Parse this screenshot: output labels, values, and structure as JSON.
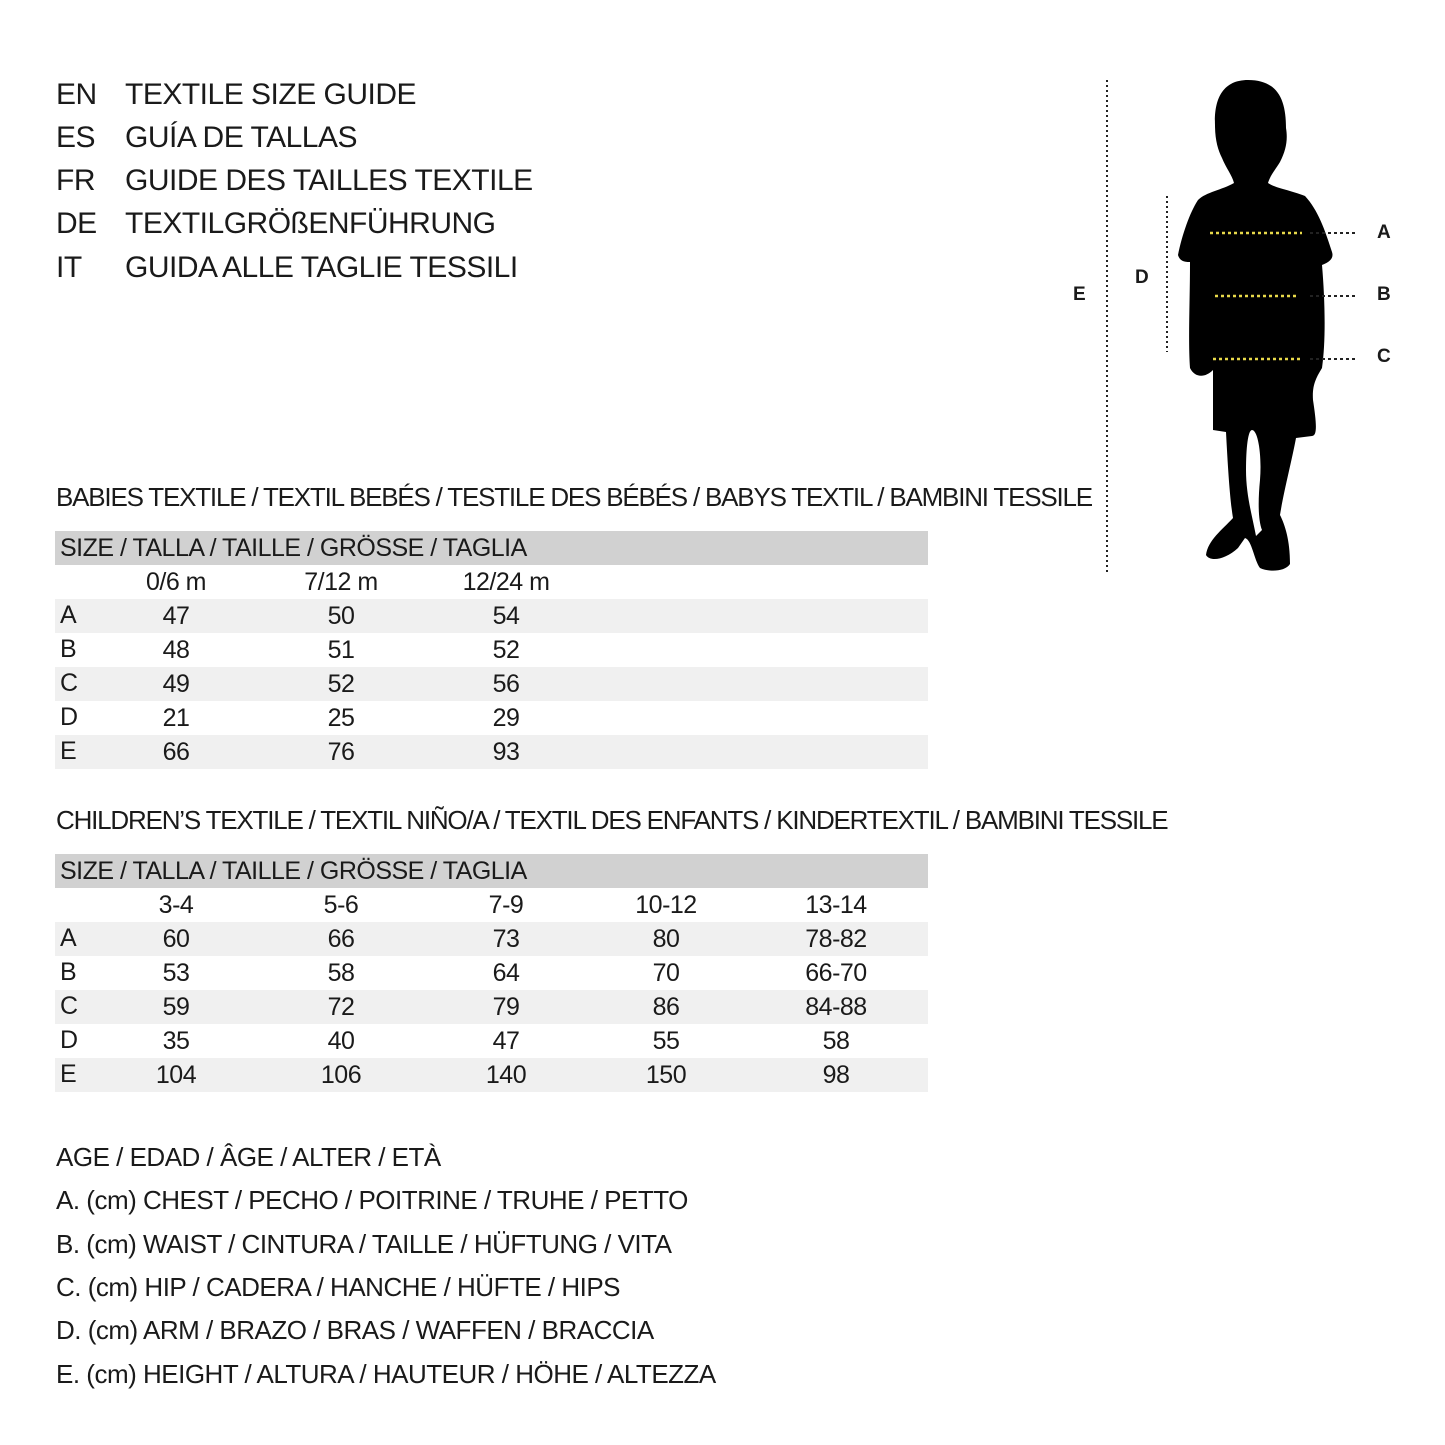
{
  "titles": [
    {
      "code": "EN",
      "text": "TEXTILE SIZE GUIDE"
    },
    {
      "code": "ES",
      "text": "GUÍA DE TALLAS"
    },
    {
      "code": "FR",
      "text": "GUIDE DES TAILLES TEXTILE"
    },
    {
      "code": "DE",
      "text": "TEXTILGRÖßENFÜHRUNG"
    },
    {
      "code": "IT",
      "text": "GUIDA ALLE TAGLIE TESSILI"
    }
  ],
  "figure": {
    "labels": {
      "A": "A",
      "B": "B",
      "C": "C",
      "D": "D",
      "E": "E"
    },
    "measure_line_color": "#e8d94a"
  },
  "babies": {
    "heading": "BABIES TEXTILE / TEXTIL BEBÉS / TESTILE DES BÉBÉS / BABYS TEXTIL / BAMBINI TESSILE",
    "size_header": "SIZE / TALLA / TAILLE / GRÖSSE / TAGLIA",
    "columns": [
      "0/6 m",
      "7/12 m",
      "12/24 m"
    ],
    "rows": [
      {
        "label": "A",
        "values": [
          "47",
          "50",
          "54"
        ]
      },
      {
        "label": "B",
        "values": [
          "48",
          "51",
          "52"
        ]
      },
      {
        "label": "C",
        "values": [
          "49",
          "52",
          "56"
        ]
      },
      {
        "label": "D",
        "values": [
          "21",
          "25",
          "29"
        ]
      },
      {
        "label": "E",
        "values": [
          "66",
          "76",
          "93"
        ]
      }
    ]
  },
  "children": {
    "heading": "CHILDREN’S TEXTILE / TEXTIL NIÑO/A / TEXTIL DES ENFANTS / KINDERTEXTIL / BAMBINI TESSILE",
    "size_header": "SIZE / TALLA / TAILLE / GRÖSSE / TAGLIA",
    "columns": [
      "3-4",
      "5-6",
      "7-9",
      "10-12",
      "13-14"
    ],
    "rows": [
      {
        "label": "A",
        "values": [
          "60",
          "66",
          "73",
          "80",
          "78-82"
        ]
      },
      {
        "label": "B",
        "values": [
          "53",
          "58",
          "64",
          "70",
          "66-70"
        ]
      },
      {
        "label": "C",
        "values": [
          "59",
          "72",
          "79",
          "86",
          "84-88"
        ]
      },
      {
        "label": "D",
        "values": [
          "35",
          "40",
          "47",
          "55",
          "58"
        ]
      },
      {
        "label": "E",
        "values": [
          "104",
          "106",
          "140",
          "150",
          "98"
        ]
      }
    ]
  },
  "legend": [
    "AGE / EDAD / ÂGE / ALTER / ETÀ",
    "A. (cm) CHEST / PECHO / POITRINE / TRUHE / PETTO",
    "B. (cm) WAIST / CINTURA / TAILLE / HÜFTUNG / VITA",
    "C. (cm) HIP / CADERA / HANCHE / HÜFTE / HIPS",
    "D. (cm) ARM / BRAZO / BRAS / WAFFEN / BRACCIA",
    "E. (cm) HEIGHT / ALTURA / HAUTEUR / HÖHE / ALTEZZA"
  ]
}
